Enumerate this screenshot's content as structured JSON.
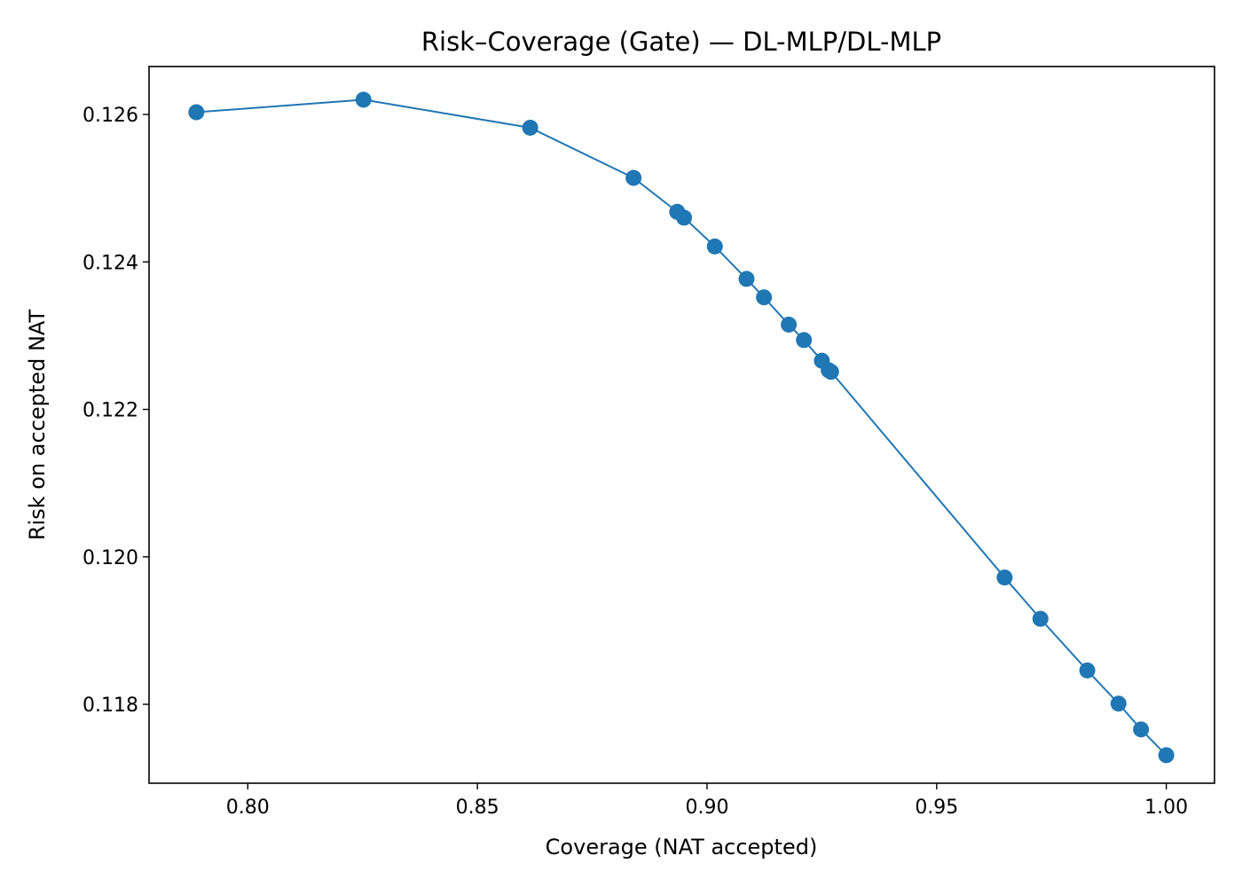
{
  "chart_data": {
    "type": "line",
    "title": "Risk–Coverage (Gate) — DL-MLP/DL-MLP",
    "xlabel": "Coverage (NAT accepted)",
    "ylabel": "Risk on accepted NAT",
    "xlim": [
      0.7785,
      1.0105
    ],
    "ylim": [
      0.11693,
      0.12665
    ],
    "xticks": [
      0.8,
      0.85,
      0.9,
      0.95,
      1.0
    ],
    "xtick_labels": [
      "0.80",
      "0.85",
      "0.90",
      "0.95",
      "1.00"
    ],
    "yticks": [
      0.118,
      0.12,
      0.122,
      0.124,
      0.126
    ],
    "ytick_labels": [
      "0.118",
      "0.120",
      "0.122",
      "0.124",
      "0.126"
    ],
    "grid": false,
    "colors": {
      "series": "#1f77b4",
      "axes": "#000000",
      "background": "#ffffff"
    },
    "series": [
      {
        "marker": "circle",
        "x": [
          0.7888,
          0.8252,
          0.8615,
          0.884,
          0.8935,
          0.895,
          0.9017,
          0.9086,
          0.9124,
          0.9178,
          0.9211,
          0.925,
          0.9265,
          0.927,
          0.9648,
          0.9726,
          0.9828,
          0.9896,
          0.9945,
          1.0
        ],
        "y": [
          0.12603,
          0.1262,
          0.12582,
          0.12514,
          0.12468,
          0.1246,
          0.12421,
          0.12377,
          0.12352,
          0.12315,
          0.12294,
          0.12266,
          0.12253,
          0.12251,
          0.11972,
          0.11916,
          0.11846,
          0.11801,
          0.11766,
          0.11731
        ]
      }
    ]
  }
}
